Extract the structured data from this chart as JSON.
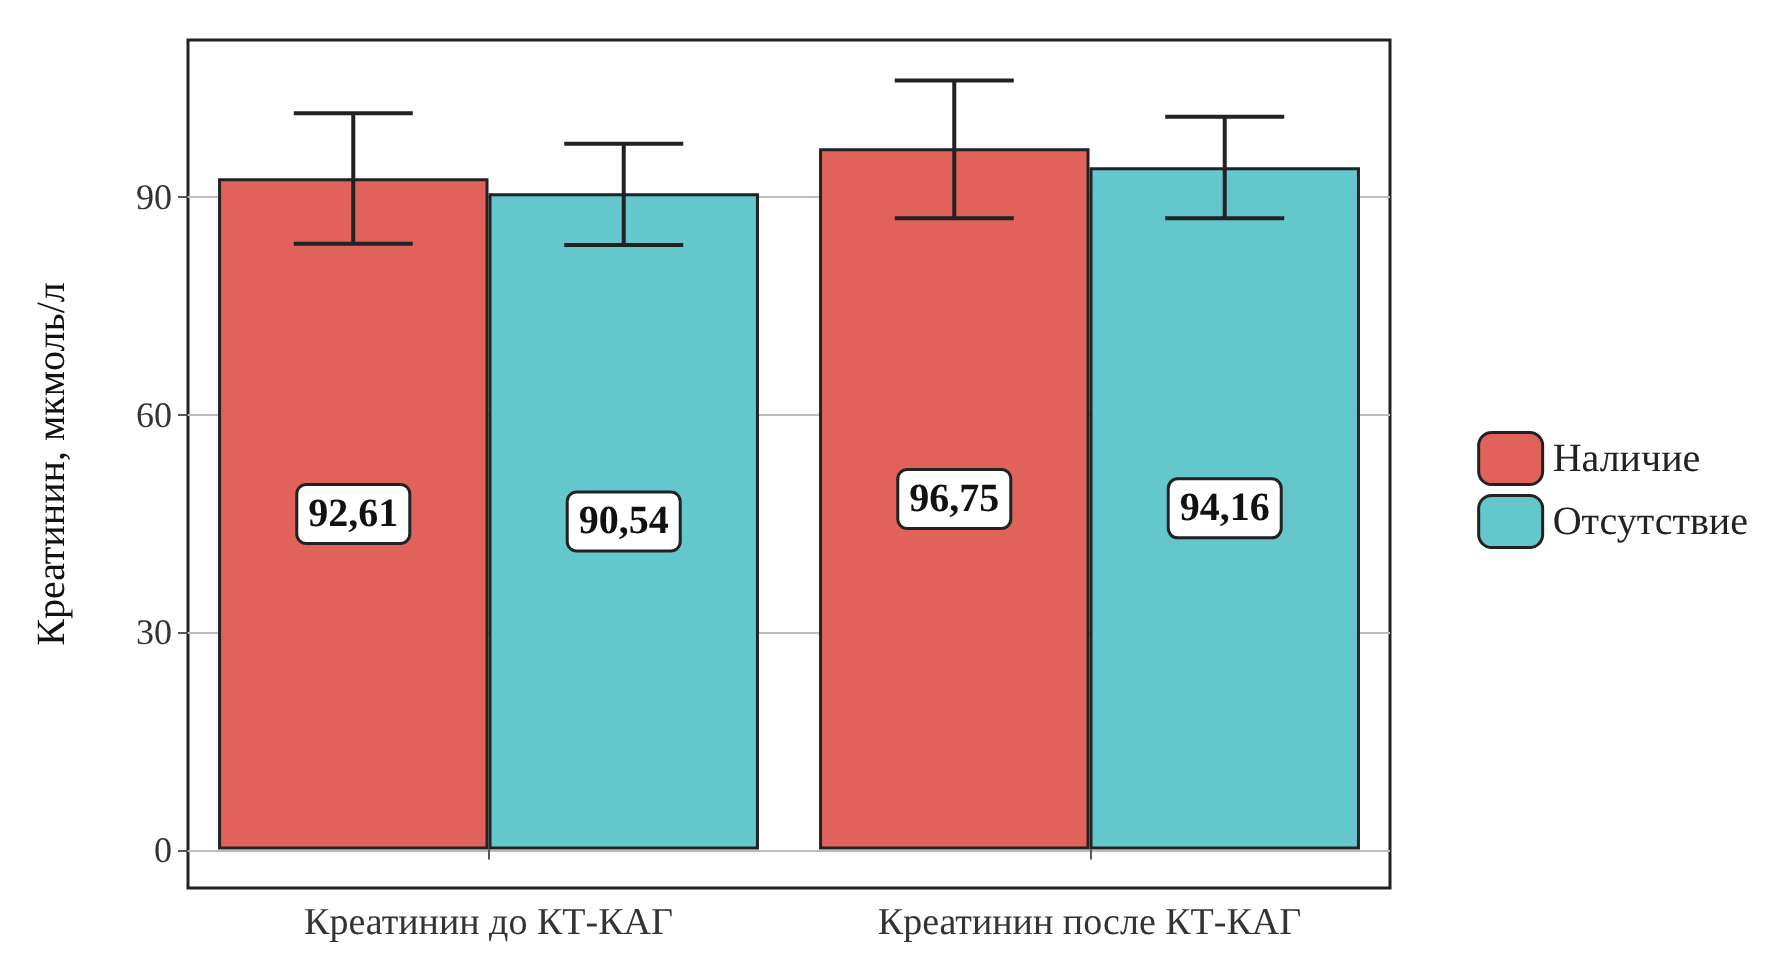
{
  "chart_data": {
    "type": "bar",
    "ylabel": "Креатинин, мкмоль/л",
    "categories": [
      "Креатинин до КТ-КАГ",
      "Креатинин после КТ-КАГ"
    ],
    "series": [
      {
        "name": "Наличие",
        "color": "#e0625b",
        "values": [
          92.61,
          96.75
        ],
        "errors": [
          [
            83.6,
            101.6
          ],
          [
            87.1,
            106.1
          ]
        ],
        "value_labels": [
          "92,61",
          "96,75"
        ]
      },
      {
        "name": "Отсутствие",
        "color": "#63c7cc",
        "values": [
          90.54,
          94.16
        ],
        "errors": [
          [
            83.4,
            97.4
          ],
          [
            87.1,
            101.1
          ]
        ],
        "value_labels": [
          "90,54",
          "94,16"
        ]
      }
    ],
    "ylim": [
      -5.3,
      111.7
    ],
    "yticks": [
      0,
      30,
      60,
      90
    ],
    "grid": "y",
    "legend": "right"
  }
}
